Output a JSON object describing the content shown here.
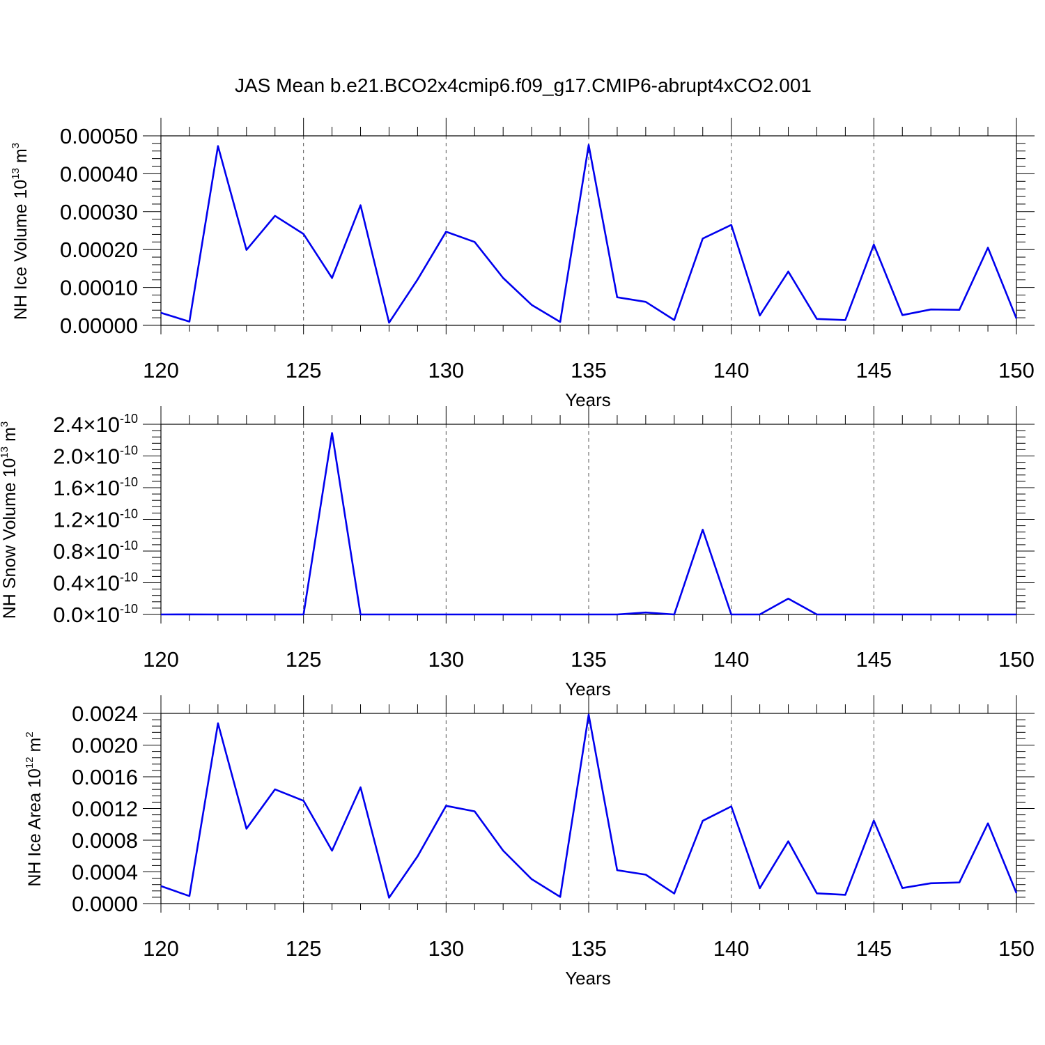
{
  "title": "JAS Mean b.e21.BCO2x4cmip6.f09_g17.CMIP6-abrupt4xCO2.001",
  "colors": {
    "line": "#0000ee",
    "grid": "#555555",
    "axis": "#000000"
  },
  "chart_data": [
    {
      "type": "line",
      "xlabel": "Years",
      "ylabel": "NH Ice Volume 10",
      "ylabel_sup": "13",
      "ylabel_unit": " m",
      "ylabel_unit_sup": "3",
      "xlim": [
        120,
        150
      ],
      "ylim": [
        0,
        0.0005
      ],
      "xticks": [
        120,
        125,
        130,
        135,
        140,
        145,
        150
      ],
      "yticks": [
        0,
        0.0001,
        0.0002,
        0.0003,
        0.0004,
        0.0005
      ],
      "ytick_labels": [
        "0.00000",
        "0.00010",
        "0.00020",
        "0.00030",
        "0.00040",
        "0.00050"
      ],
      "grid": "vertical dashed at major x ticks",
      "x": [
        120,
        121,
        122,
        123,
        124,
        125,
        126,
        127,
        128,
        129,
        130,
        131,
        132,
        133,
        134,
        135,
        136,
        137,
        138,
        139,
        140,
        141,
        142,
        143,
        144,
        145,
        146,
        147,
        148,
        149,
        150
      ],
      "y": [
        3.3e-05,
        1e-05,
        0.000473,
        0.000199,
        0.000289,
        0.000241,
        0.000125,
        0.000317,
        7e-06,
        0.000121,
        0.000247,
        0.00022,
        0.000125,
        5.4e-05,
        9e-06,
        0.000476,
        7.4e-05,
        6.2e-05,
        1.4e-05,
        0.000229,
        0.000265,
        2.6e-05,
        0.000142,
        1.7e-05,
        1.4e-05,
        0.000213,
        2.7e-05,
        4.2e-05,
        4.1e-05,
        0.000205,
        1.8e-05
      ]
    },
    {
      "type": "line",
      "xlabel": "Years",
      "ylabel": "NH Snow Volume 10",
      "ylabel_sup": "13",
      "ylabel_unit": " m",
      "ylabel_unit_sup": "3",
      "xlim": [
        120,
        150
      ],
      "ylim": [
        0,
        2.4e-10
      ],
      "xticks": [
        120,
        125,
        130,
        135,
        140,
        145,
        150
      ],
      "yticks": [
        0,
        4e-11,
        8e-11,
        1.2e-10,
        1.6e-10,
        2e-10,
        2.4e-10
      ],
      "ytick_mantissas": [
        "0.0",
        "0.4",
        "0.8",
        "1.2",
        "1.6",
        "2.0",
        "2.4"
      ],
      "ytick_base": "10",
      "ytick_exponent": "-10",
      "grid": "vertical dashed at major x ticks",
      "x": [
        120,
        121,
        122,
        123,
        124,
        125,
        126,
        127,
        128,
        129,
        130,
        131,
        132,
        133,
        134,
        135,
        136,
        137,
        138,
        139,
        140,
        141,
        142,
        143,
        144,
        145,
        146,
        147,
        148,
        149,
        150
      ],
      "y": [
        0,
        1e-13,
        0,
        0,
        0,
        0,
        2.29e-10,
        0,
        0,
        0,
        0,
        0,
        0,
        0,
        0,
        0,
        0,
        2.5e-12,
        0,
        1.07e-10,
        0,
        0,
        2e-11,
        0,
        0,
        0,
        0,
        0,
        0,
        0,
        0
      ]
    },
    {
      "type": "line",
      "xlabel": "Years",
      "ylabel": "NH Ice Area 10",
      "ylabel_sup": "12",
      "ylabel_unit": " m",
      "ylabel_unit_sup": "2",
      "xlim": [
        120,
        150
      ],
      "ylim": [
        0,
        0.0024
      ],
      "xticks": [
        120,
        125,
        130,
        135,
        140,
        145,
        150
      ],
      "yticks": [
        0,
        0.0004,
        0.0008,
        0.0012,
        0.0016,
        0.002,
        0.0024
      ],
      "ytick_labels": [
        "0.0000",
        "0.0004",
        "0.0008",
        "0.0012",
        "0.0016",
        "0.0020",
        "0.0024"
      ],
      "grid": "vertical dashed at major x ticks",
      "x": [
        120,
        121,
        122,
        123,
        124,
        125,
        126,
        127,
        128,
        129,
        130,
        131,
        132,
        133,
        134,
        135,
        136,
        137,
        138,
        139,
        140,
        141,
        142,
        143,
        144,
        145,
        146,
        147,
        148,
        149,
        150
      ],
      "y": [
        0.000221,
        9.5e-05,
        0.002274,
        0.000945,
        0.001441,
        0.001298,
        0.000667,
        0.001467,
        7.5e-05,
        0.000597,
        0.001233,
        0.001164,
        0.000668,
        0.000309,
        8.4e-05,
        0.002384,
        0.000421,
        0.000365,
        0.000127,
        0.001044,
        0.001226,
        0.000194,
        0.000786,
        0.000129,
        0.000111,
        0.001047,
        0.000196,
        0.000257,
        0.000266,
        0.001013,
        0.000133
      ]
    }
  ]
}
